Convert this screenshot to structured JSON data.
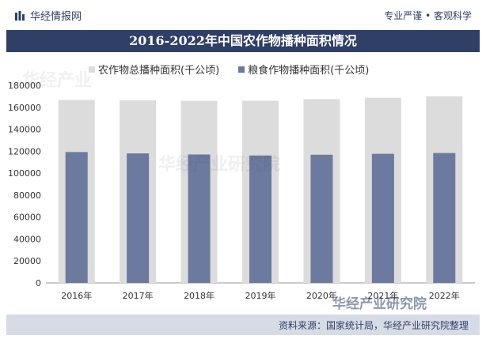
{
  "header": {
    "brand": "华经情报网",
    "slogan": "专业严谨 • 客观科学"
  },
  "footer": {
    "source": "资料来源：国家统计局，华经产业研究院整理",
    "logo_text": "华经产业研究院"
  },
  "colors": {
    "header_bg": "#2f3f66",
    "total_bar": "#dcdcdc",
    "grain_bar": "#6b7a9e",
    "footer_bg": "#d6dbe5"
  },
  "chart_data": {
    "type": "bar",
    "title": "2016-2022年中国农作物播种面积情况",
    "categories": [
      "2016年",
      "2017年",
      "2018年",
      "2019年",
      "2020年",
      "2021年",
      "2022年"
    ],
    "series": [
      {
        "name": "农作物总播种面积(千公顷)",
        "values": [
          166650,
          166332,
          165902,
          165931,
          167487,
          168695,
          169991
        ]
      },
      {
        "name": "粮食作物播种面积(千公顷)",
        "values": [
          119230,
          117989,
          117038,
          116064,
          116768,
          117631,
          118332
        ]
      }
    ],
    "ylim": [
      0,
      180000
    ],
    "yticks": [
      "0",
      "20000",
      "40000",
      "60000",
      "80000",
      "100000",
      "120000",
      "140000",
      "160000",
      "180000"
    ],
    "legend": "top",
    "grid": false
  }
}
